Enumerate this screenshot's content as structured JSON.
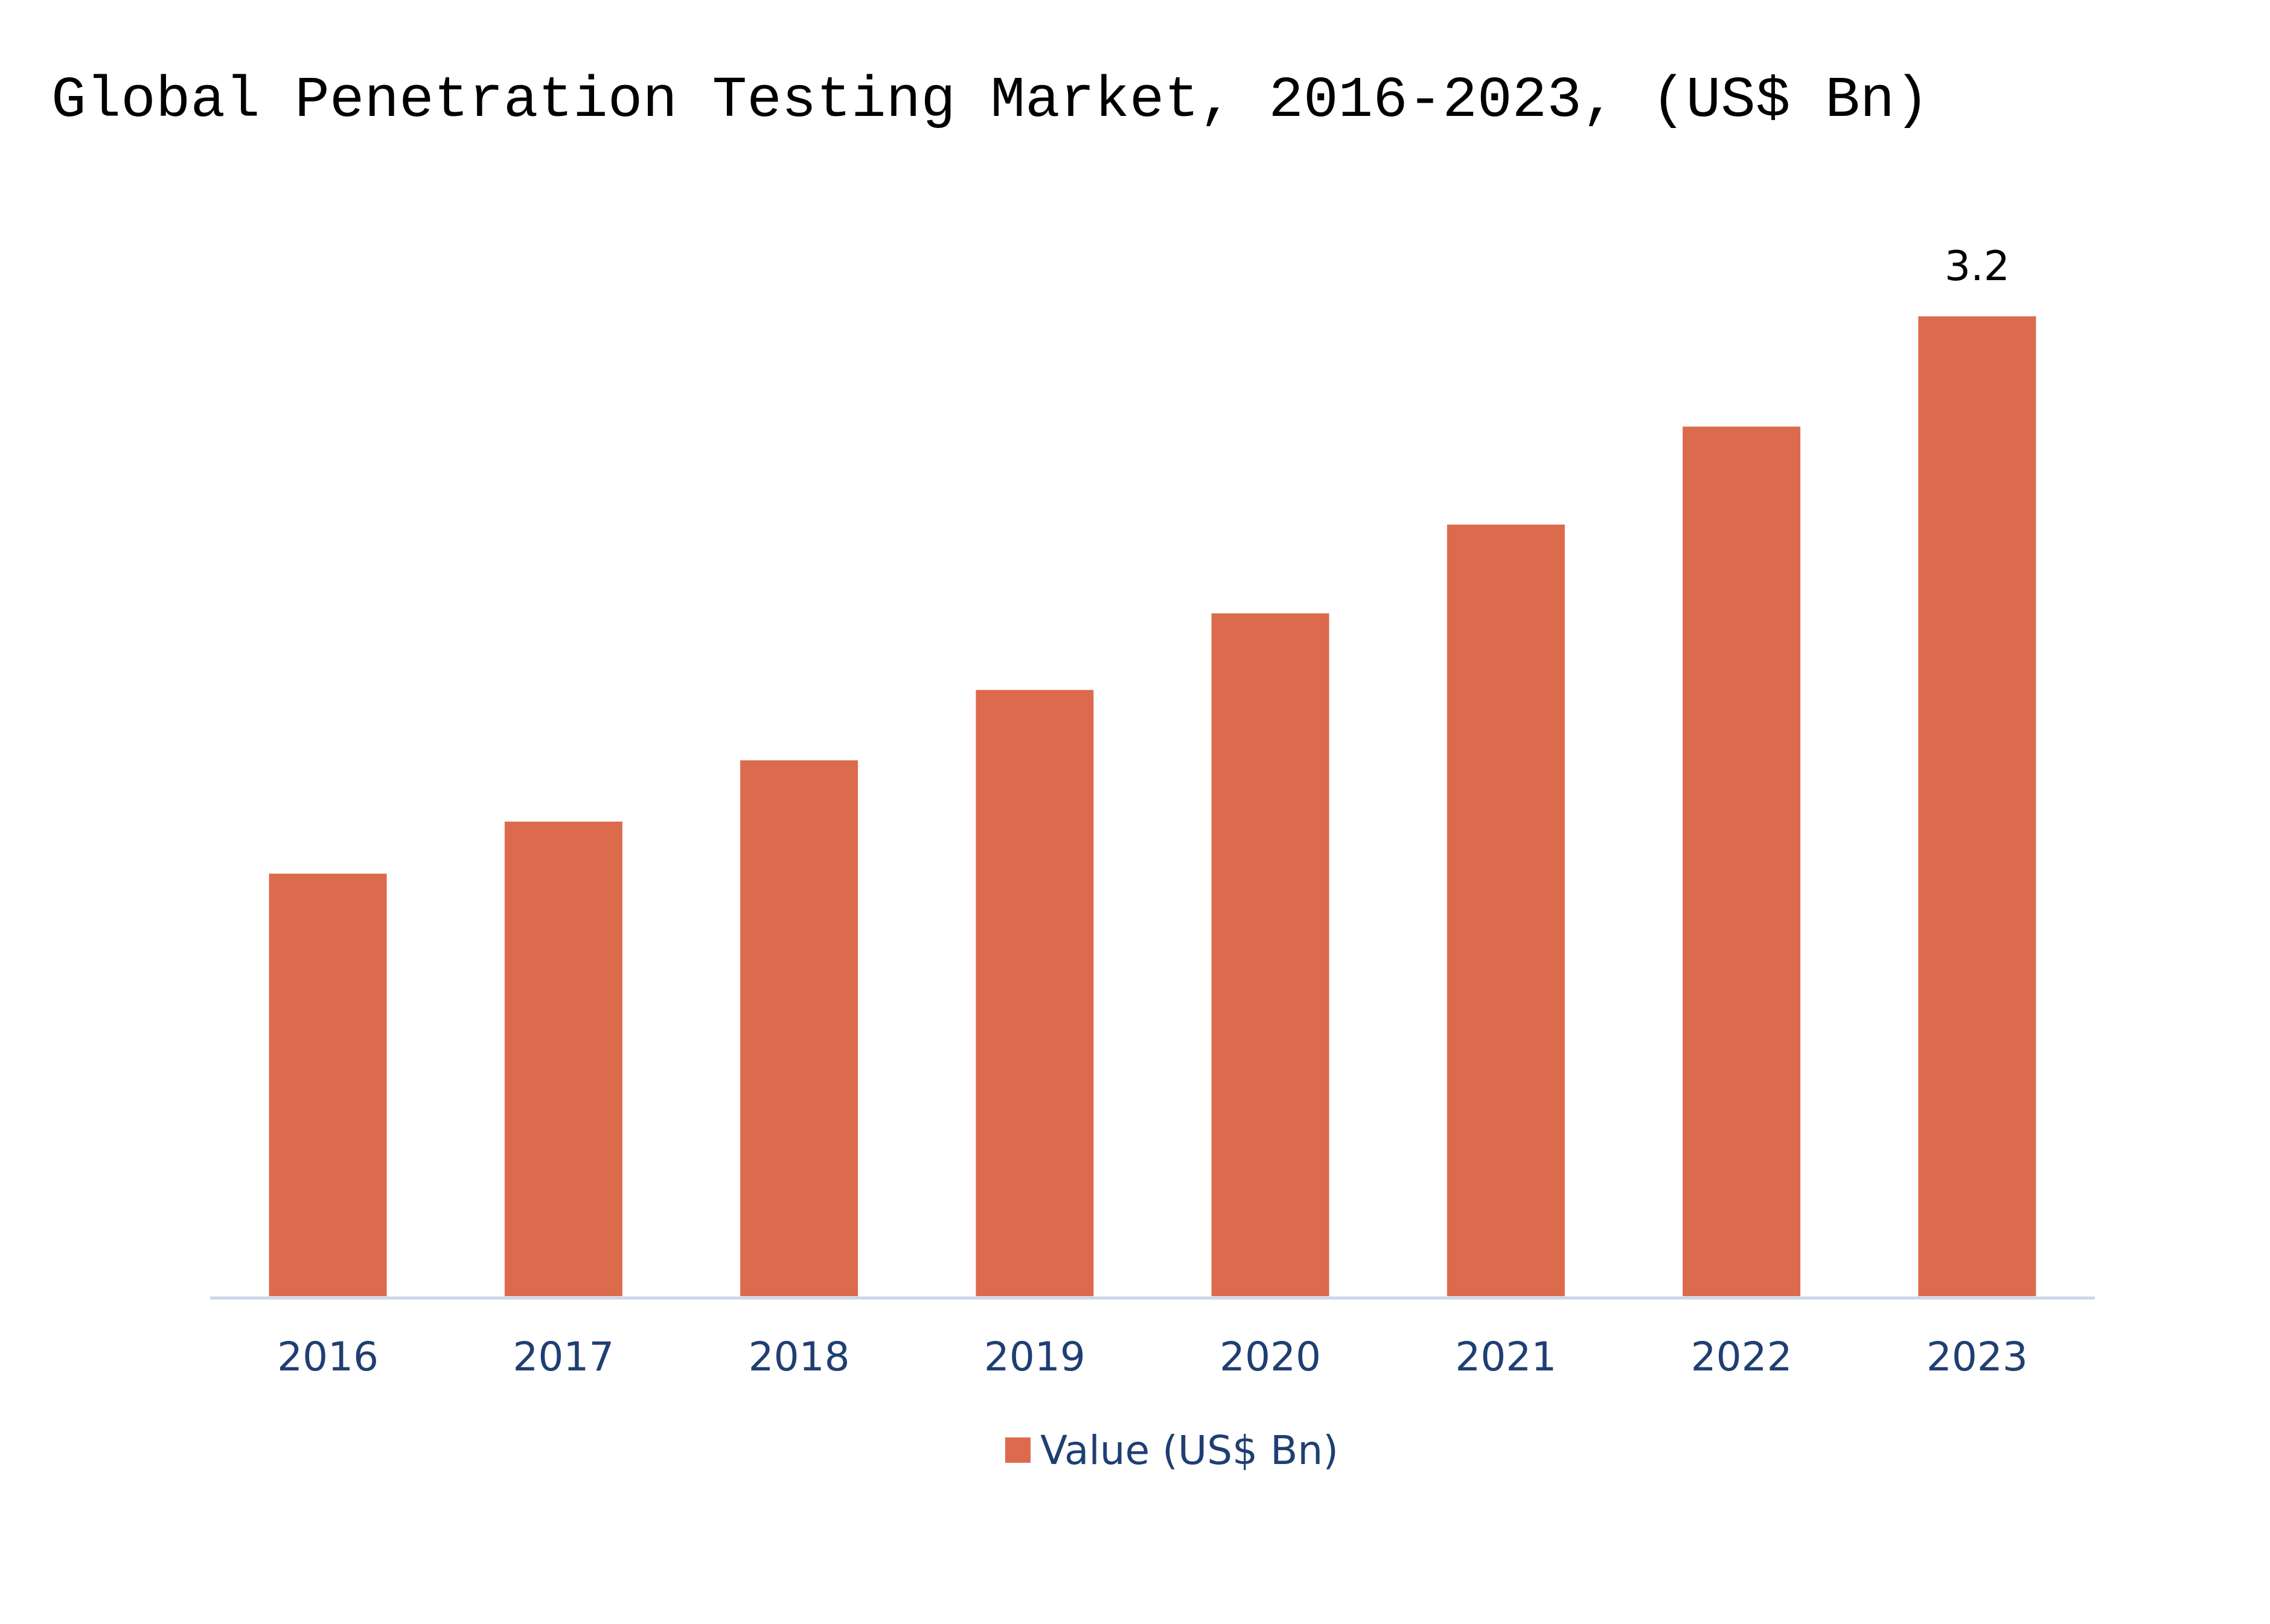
{
  "chart_data": {
    "type": "bar",
    "title": "Global Penetration Testing Market, 2016-2023, (US$ Bn)",
    "categories": [
      "2016",
      "2017",
      "2018",
      "2019",
      "2020",
      "2021",
      "2022",
      "2023"
    ],
    "series": [
      {
        "name": "Value (US$ Bn)",
        "values": [
          1.38,
          1.55,
          1.75,
          1.98,
          2.23,
          2.52,
          2.84,
          3.2
        ],
        "color": "#dc6b4e"
      }
    ],
    "data_labels": [
      {
        "category": "2023",
        "text": "3.2"
      }
    ],
    "ylim": [
      0,
      3.2
    ],
    "grid": false,
    "legend_position": "bottom",
    "axis_color": "#ccd6eb"
  }
}
